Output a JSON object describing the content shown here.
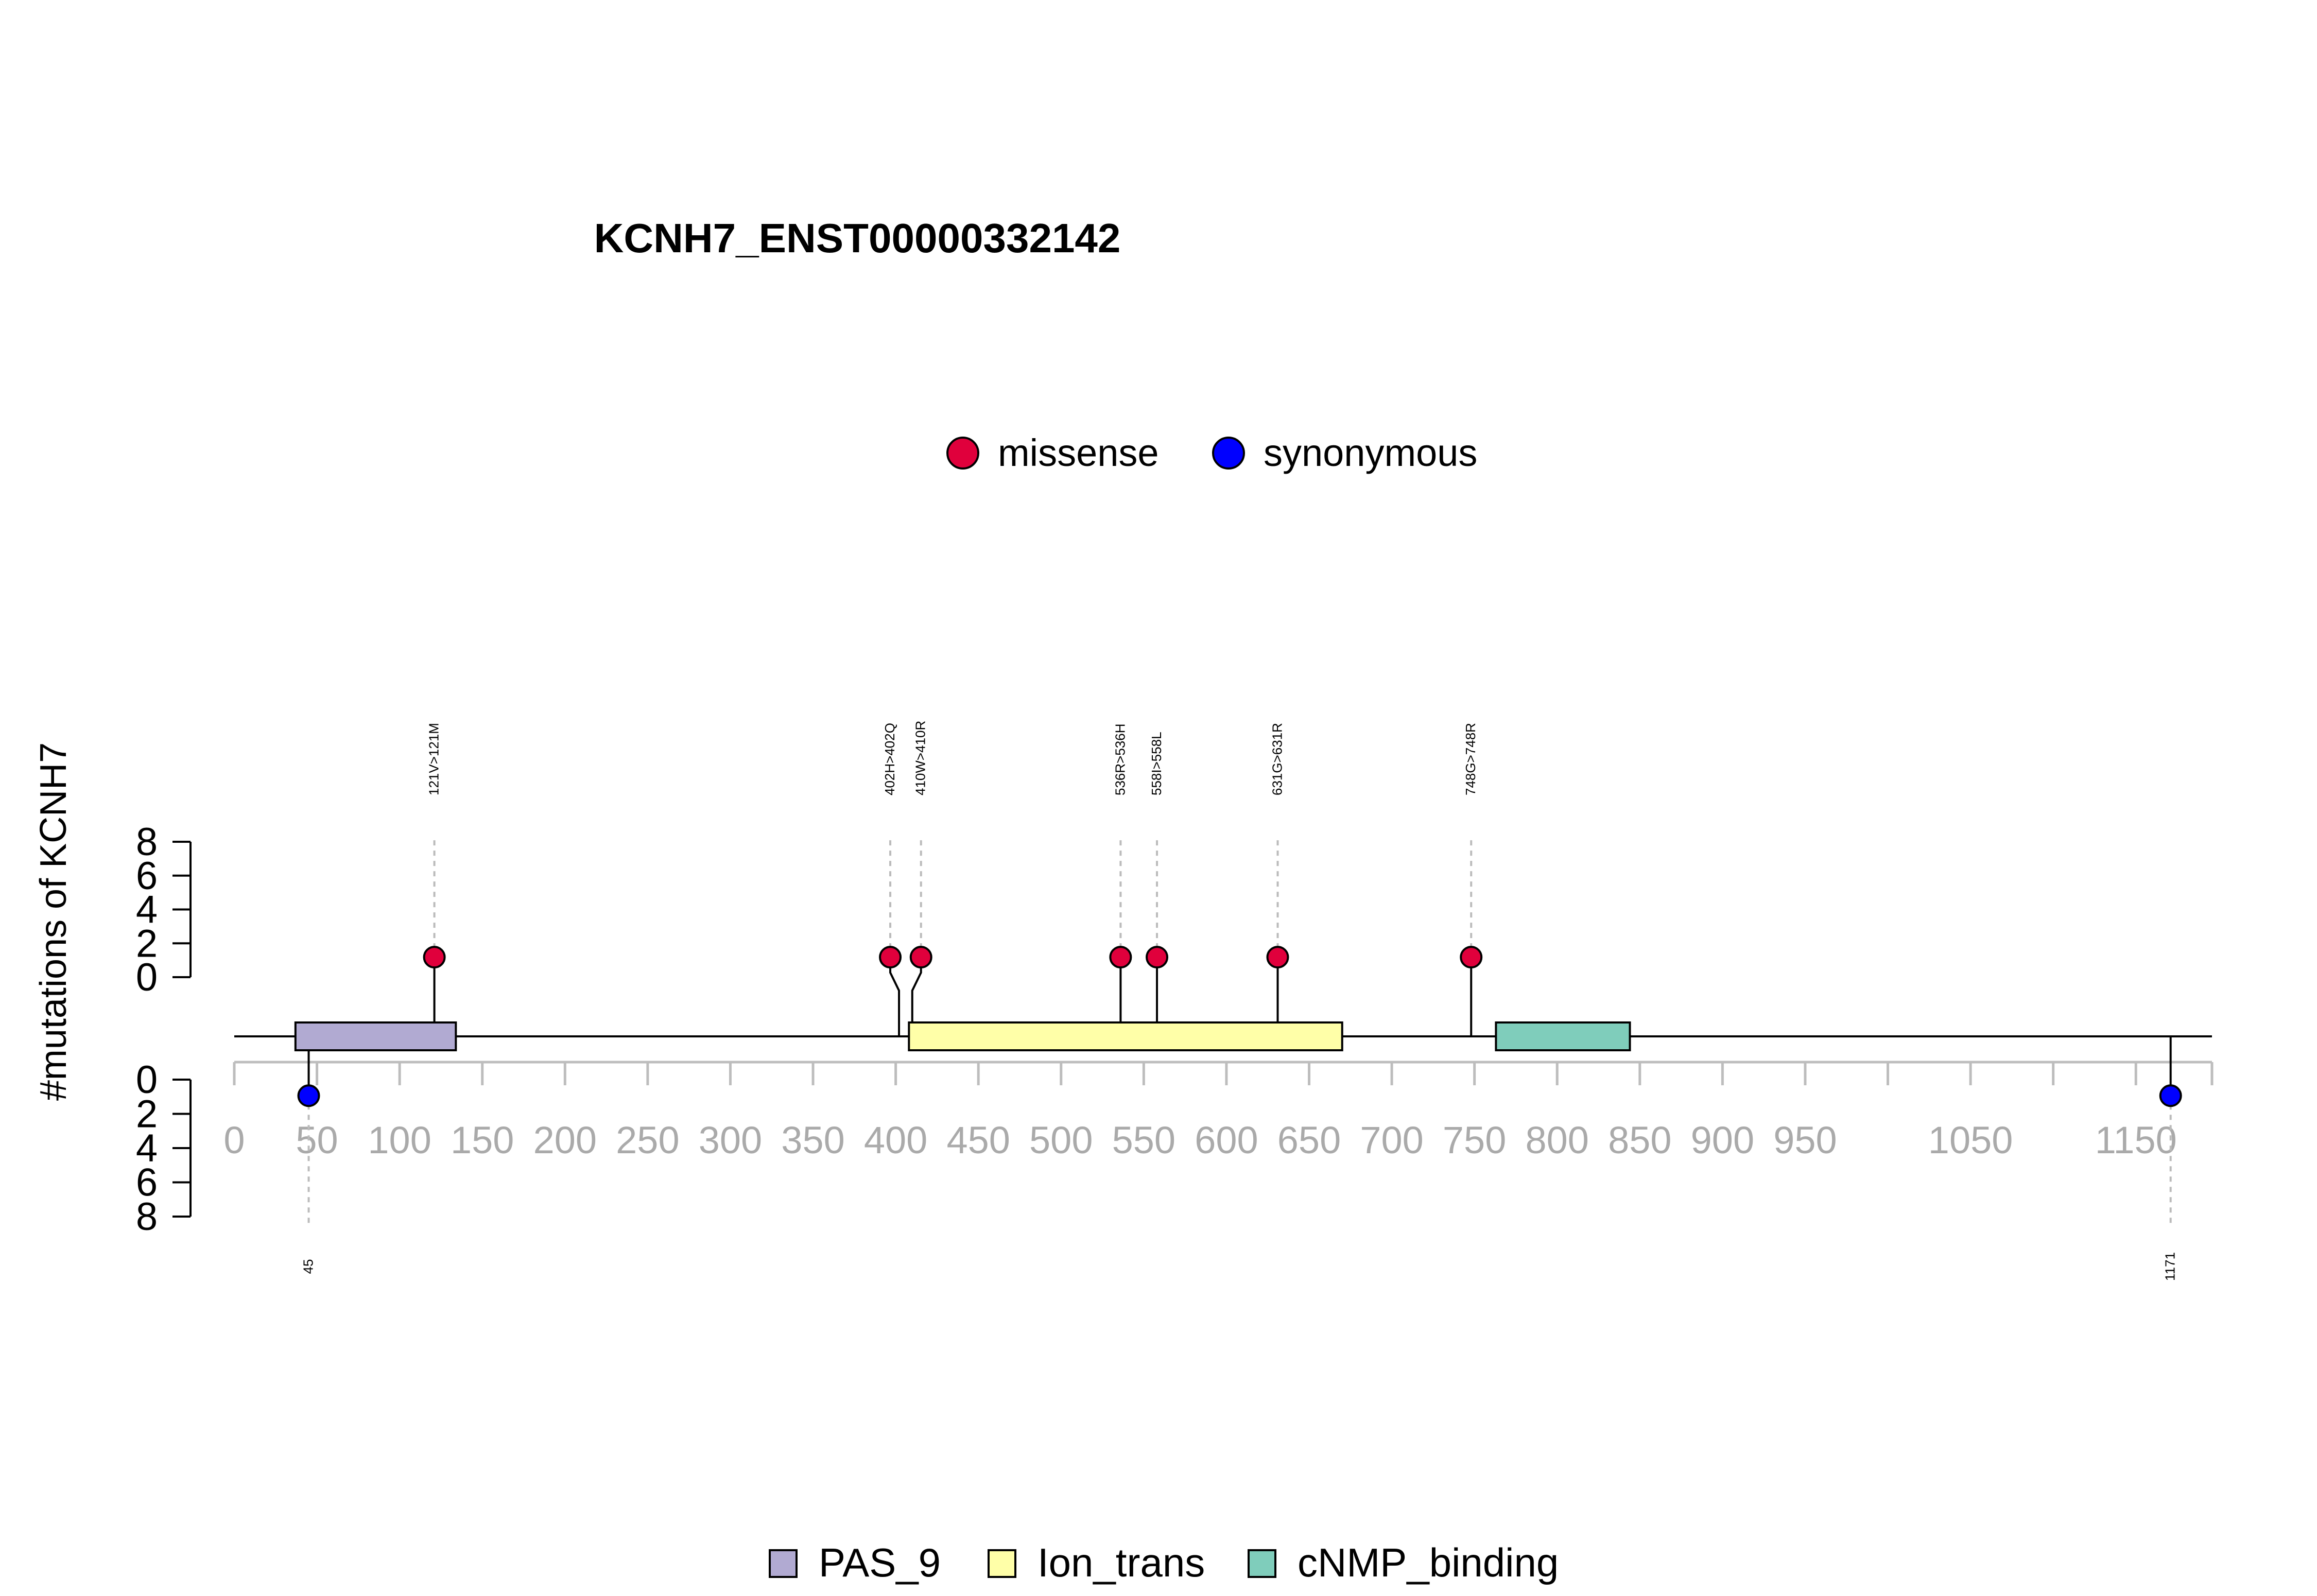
{
  "chart_data": {
    "type": "lollipop",
    "title": "KCNH7_ENST00000332142",
    "ylabel": "#mutations of KCNH7",
    "protein_length": 1196,
    "xlim": [
      0,
      1196
    ],
    "ylim": [
      0,
      8
    ],
    "y_ticks_top": [
      "8",
      "6",
      "4",
      "2",
      "0"
    ],
    "y_ticks_bottom": [
      "0",
      "2",
      "4",
      "6",
      "8"
    ],
    "x_ticks": [
      0,
      50,
      100,
      150,
      200,
      250,
      300,
      350,
      400,
      450,
      500,
      550,
      600,
      650,
      700,
      750,
      800,
      850,
      900,
      950,
      1000,
      1050,
      1100,
      1150,
      1196
    ],
    "x_tick_labels": [
      "0",
      "50",
      "100",
      "150",
      "200",
      "250",
      "300",
      "350",
      "400",
      "450",
      "500",
      "550",
      "600",
      "650",
      "700",
      "750",
      "800",
      "850",
      "900",
      "950",
      "",
      "1050",
      "",
      "1150",
      ""
    ],
    "mutation_legend": [
      {
        "label": "missense",
        "color": "#E0003C"
      },
      {
        "label": "synonymous",
        "color": "#0000FF"
      }
    ],
    "mutations_top": [
      {
        "position": 121,
        "count": 1,
        "type": "missense",
        "label": "121V>121M",
        "color": "#E0003C"
      },
      {
        "position": 402,
        "count": 1,
        "type": "missense",
        "label": "402H>402Q",
        "color": "#E0003C"
      },
      {
        "position": 410,
        "count": 1,
        "type": "missense",
        "label": "410W>410R",
        "color": "#E0003C"
      },
      {
        "position": 536,
        "count": 1,
        "type": "missense",
        "label": "536R>536H",
        "color": "#E0003C"
      },
      {
        "position": 558,
        "count": 1,
        "type": "missense",
        "label": "558I>558L",
        "color": "#E0003C"
      },
      {
        "position": 631,
        "count": 1,
        "type": "missense",
        "label": "631G>631R",
        "color": "#E0003C"
      },
      {
        "position": 748,
        "count": 1,
        "type": "missense",
        "label": "748G>748R",
        "color": "#E0003C"
      }
    ],
    "mutations_bottom": [
      {
        "position": 45,
        "count": 1,
        "type": "synonymous",
        "label": "45",
        "color": "#0000FF"
      },
      {
        "position": 1171,
        "count": 1,
        "type": "synonymous",
        "label": "1171",
        "color": "#0000FF"
      }
    ],
    "domains": [
      {
        "name": "PAS_9",
        "start": 37,
        "end": 134,
        "color": "#B1AAD2"
      },
      {
        "name": "Ion_trans",
        "start": 408,
        "end": 670,
        "color": "#FFFFA8"
      },
      {
        "name": "cNMP_binding",
        "start": 763,
        "end": 844,
        "color": "#7FCDBB"
      }
    ],
    "domain_legend": [
      {
        "label": "PAS_9",
        "color": "#B1AAD2"
      },
      {
        "label": "Ion_trans",
        "color": "#FFFFA8"
      },
      {
        "label": "cNMP_binding",
        "color": "#7FCDBB"
      }
    ]
  }
}
